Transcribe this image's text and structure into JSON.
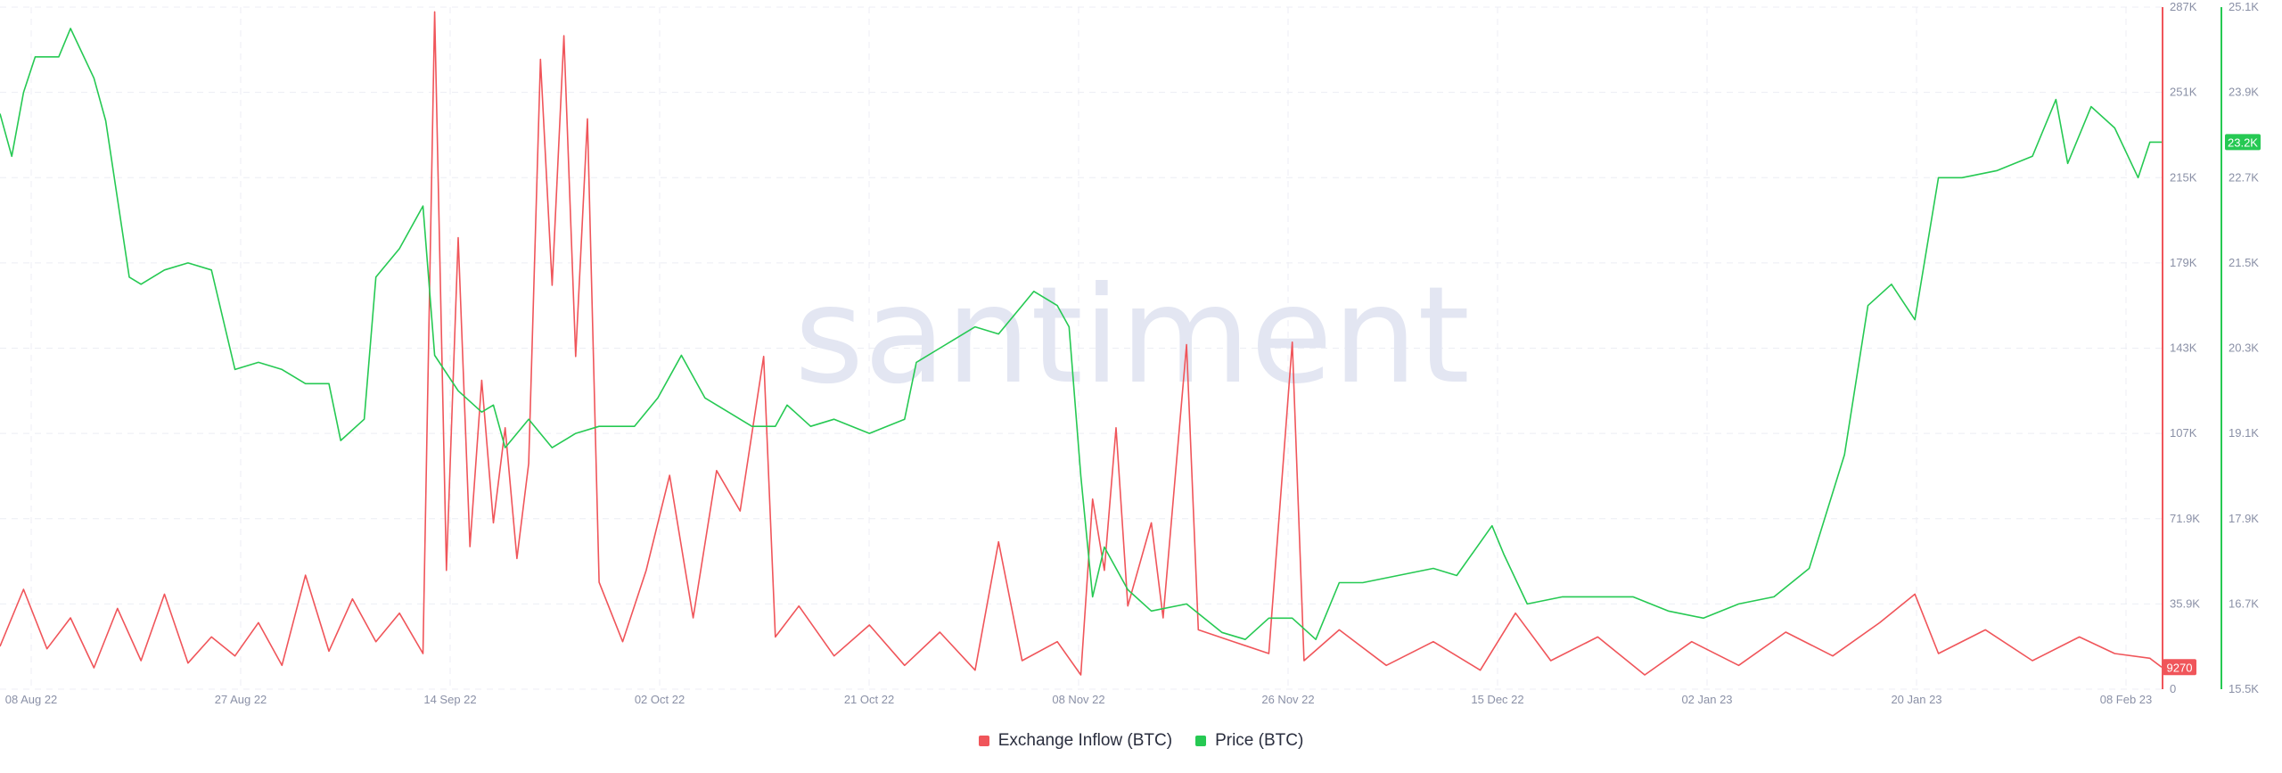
{
  "watermark": "santiment",
  "chart_data": {
    "type": "line",
    "x_ticks": [
      "08 Aug 22",
      "27 Aug 22",
      "14 Sep 22",
      "02 Oct 22",
      "21 Oct 22",
      "08 Nov 22",
      "26 Nov 22",
      "15 Dec 22",
      "02 Jan 23",
      "20 Jan 23",
      "08 Feb 23"
    ],
    "xlim": [
      "2022-08-08",
      "2023-02-08"
    ],
    "series": [
      {
        "name": "Exchange Inflow (BTC)",
        "axis": "left",
        "color": "#f0555a",
        "ylim": [
          0,
          287000
        ],
        "y_ticks": [
          "0",
          "35.9K",
          "71.9K",
          "107K",
          "143K",
          "179K",
          "215K",
          "251K",
          "287K"
        ],
        "last_value_label": "9270",
        "points": [
          [
            "2022-08-08",
            18000
          ],
          [
            "2022-08-10",
            42000
          ],
          [
            "2022-08-12",
            17000
          ],
          [
            "2022-08-14",
            30000
          ],
          [
            "2022-08-16",
            9000
          ],
          [
            "2022-08-18",
            34000
          ],
          [
            "2022-08-20",
            12000
          ],
          [
            "2022-08-22",
            40000
          ],
          [
            "2022-08-24",
            11000
          ],
          [
            "2022-08-26",
            22000
          ],
          [
            "2022-08-28",
            14000
          ],
          [
            "2022-08-30",
            28000
          ],
          [
            "2022-09-01",
            10000
          ],
          [
            "2022-09-03",
            48000
          ],
          [
            "2022-09-05",
            16000
          ],
          [
            "2022-09-07",
            38000
          ],
          [
            "2022-09-09",
            20000
          ],
          [
            "2022-09-11",
            32000
          ],
          [
            "2022-09-13",
            15000
          ],
          [
            "2022-09-14",
            285000
          ],
          [
            "2022-09-15",
            50000
          ],
          [
            "2022-09-16",
            190000
          ],
          [
            "2022-09-17",
            60000
          ],
          [
            "2022-09-18",
            130000
          ],
          [
            "2022-09-19",
            70000
          ],
          [
            "2022-09-20",
            110000
          ],
          [
            "2022-09-21",
            55000
          ],
          [
            "2022-09-22",
            95000
          ],
          [
            "2022-09-23",
            265000
          ],
          [
            "2022-09-24",
            170000
          ],
          [
            "2022-09-25",
            275000
          ],
          [
            "2022-09-26",
            140000
          ],
          [
            "2022-09-27",
            240000
          ],
          [
            "2022-09-28",
            45000
          ],
          [
            "2022-09-30",
            20000
          ],
          [
            "2022-10-02",
            50000
          ],
          [
            "2022-10-04",
            90000
          ],
          [
            "2022-10-06",
            30000
          ],
          [
            "2022-10-08",
            92000
          ],
          [
            "2022-10-10",
            75000
          ],
          [
            "2022-10-12",
            140000
          ],
          [
            "2022-10-13",
            22000
          ],
          [
            "2022-10-15",
            35000
          ],
          [
            "2022-10-18",
            14000
          ],
          [
            "2022-10-21",
            27000
          ],
          [
            "2022-10-24",
            10000
          ],
          [
            "2022-10-27",
            24000
          ],
          [
            "2022-10-30",
            8000
          ],
          [
            "2022-11-01",
            62000
          ],
          [
            "2022-11-03",
            12000
          ],
          [
            "2022-11-06",
            20000
          ],
          [
            "2022-11-08",
            6000
          ],
          [
            "2022-11-09",
            80000
          ],
          [
            "2022-11-10",
            50000
          ],
          [
            "2022-11-11",
            110000
          ],
          [
            "2022-11-12",
            35000
          ],
          [
            "2022-11-14",
            70000
          ],
          [
            "2022-11-15",
            30000
          ],
          [
            "2022-11-17",
            145000
          ],
          [
            "2022-11-18",
            25000
          ],
          [
            "2022-11-21",
            20000
          ],
          [
            "2022-11-24",
            15000
          ],
          [
            "2022-11-26",
            146000
          ],
          [
            "2022-11-27",
            12000
          ],
          [
            "2022-11-30",
            25000
          ],
          [
            "2022-12-04",
            10000
          ],
          [
            "2022-12-08",
            20000
          ],
          [
            "2022-12-12",
            8000
          ],
          [
            "2022-12-15",
            32000
          ],
          [
            "2022-12-18",
            12000
          ],
          [
            "2022-12-22",
            22000
          ],
          [
            "2022-12-26",
            6000
          ],
          [
            "2022-12-30",
            20000
          ],
          [
            "2023-01-03",
            10000
          ],
          [
            "2023-01-07",
            24000
          ],
          [
            "2023-01-11",
            14000
          ],
          [
            "2023-01-15",
            28000
          ],
          [
            "2023-01-18",
            40000
          ],
          [
            "2023-01-20",
            15000
          ],
          [
            "2023-01-24",
            25000
          ],
          [
            "2023-01-28",
            12000
          ],
          [
            "2023-02-01",
            22000
          ],
          [
            "2023-02-04",
            15000
          ],
          [
            "2023-02-07",
            13000
          ],
          [
            "2023-02-08",
            9270
          ]
        ]
      },
      {
        "name": "Price (BTC)",
        "axis": "right",
        "color": "#26c953",
        "ylim": [
          15500,
          25100
        ],
        "y_ticks": [
          "15.5K",
          "16.7K",
          "17.9K",
          "19.1K",
          "20.3K",
          "21.5K",
          "22.7K",
          "23.9K",
          "25.1K"
        ],
        "last_value_label": "23.2K",
        "points": [
          [
            "2022-08-08",
            23600
          ],
          [
            "2022-08-09",
            23000
          ],
          [
            "2022-08-10",
            23900
          ],
          [
            "2022-08-11",
            24400
          ],
          [
            "2022-08-13",
            24400
          ],
          [
            "2022-08-14",
            24800
          ],
          [
            "2022-08-16",
            24100
          ],
          [
            "2022-08-17",
            23500
          ],
          [
            "2022-08-19",
            21300
          ],
          [
            "2022-08-20",
            21200
          ],
          [
            "2022-08-22",
            21400
          ],
          [
            "2022-08-24",
            21500
          ],
          [
            "2022-08-26",
            21400
          ],
          [
            "2022-08-28",
            20000
          ],
          [
            "2022-08-30",
            20100
          ],
          [
            "2022-09-01",
            20000
          ],
          [
            "2022-09-03",
            19800
          ],
          [
            "2022-09-05",
            19800
          ],
          [
            "2022-09-06",
            19000
          ],
          [
            "2022-09-08",
            19300
          ],
          [
            "2022-09-09",
            21300
          ],
          [
            "2022-09-11",
            21700
          ],
          [
            "2022-09-13",
            22300
          ],
          [
            "2022-09-14",
            20200
          ],
          [
            "2022-09-16",
            19700
          ],
          [
            "2022-09-18",
            19400
          ],
          [
            "2022-09-19",
            19500
          ],
          [
            "2022-09-20",
            18900
          ],
          [
            "2022-09-22",
            19300
          ],
          [
            "2022-09-24",
            18900
          ],
          [
            "2022-09-26",
            19100
          ],
          [
            "2022-09-28",
            19200
          ],
          [
            "2022-10-01",
            19200
          ],
          [
            "2022-10-03",
            19600
          ],
          [
            "2022-10-05",
            20200
          ],
          [
            "2022-10-07",
            19600
          ],
          [
            "2022-10-09",
            19400
          ],
          [
            "2022-10-11",
            19200
          ],
          [
            "2022-10-13",
            19200
          ],
          [
            "2022-10-14",
            19500
          ],
          [
            "2022-10-16",
            19200
          ],
          [
            "2022-10-18",
            19300
          ],
          [
            "2022-10-21",
            19100
          ],
          [
            "2022-10-24",
            19300
          ],
          [
            "2022-10-25",
            20100
          ],
          [
            "2022-10-27",
            20300
          ],
          [
            "2022-10-30",
            20600
          ],
          [
            "2022-11-01",
            20500
          ],
          [
            "2022-11-04",
            21100
          ],
          [
            "2022-11-06",
            20900
          ],
          [
            "2022-11-07",
            20600
          ],
          [
            "2022-11-08",
            18500
          ],
          [
            "2022-11-09",
            16800
          ],
          [
            "2022-11-10",
            17500
          ],
          [
            "2022-11-12",
            16900
          ],
          [
            "2022-11-14",
            16600
          ],
          [
            "2022-11-17",
            16700
          ],
          [
            "2022-11-20",
            16300
          ],
          [
            "2022-11-22",
            16200
          ],
          [
            "2022-11-24",
            16500
          ],
          [
            "2022-11-26",
            16500
          ],
          [
            "2022-11-28",
            16200
          ],
          [
            "2022-11-30",
            17000
          ],
          [
            "2022-12-02",
            17000
          ],
          [
            "2022-12-05",
            17100
          ],
          [
            "2022-12-08",
            17200
          ],
          [
            "2022-12-10",
            17100
          ],
          [
            "2022-12-13",
            17800
          ],
          [
            "2022-12-14",
            17400
          ],
          [
            "2022-12-16",
            16700
          ],
          [
            "2022-12-19",
            16800
          ],
          [
            "2022-12-22",
            16800
          ],
          [
            "2022-12-25",
            16800
          ],
          [
            "2022-12-28",
            16600
          ],
          [
            "2022-12-31",
            16500
          ],
          [
            "2023-01-03",
            16700
          ],
          [
            "2023-01-06",
            16800
          ],
          [
            "2023-01-09",
            17200
          ],
          [
            "2023-01-12",
            18800
          ],
          [
            "2023-01-14",
            20900
          ],
          [
            "2023-01-16",
            21200
          ],
          [
            "2023-01-18",
            20700
          ],
          [
            "2023-01-20",
            22700
          ],
          [
            "2023-01-22",
            22700
          ],
          [
            "2023-01-25",
            22800
          ],
          [
            "2023-01-28",
            23000
          ],
          [
            "2023-01-30",
            23800
          ],
          [
            "2023-01-31",
            22900
          ],
          [
            "2023-02-02",
            23700
          ],
          [
            "2023-02-04",
            23400
          ],
          [
            "2023-02-06",
            22700
          ],
          [
            "2023-02-07",
            23200
          ],
          [
            "2023-02-08",
            23200
          ]
        ]
      }
    ],
    "grid": true,
    "legend_position": "bottom-center"
  }
}
